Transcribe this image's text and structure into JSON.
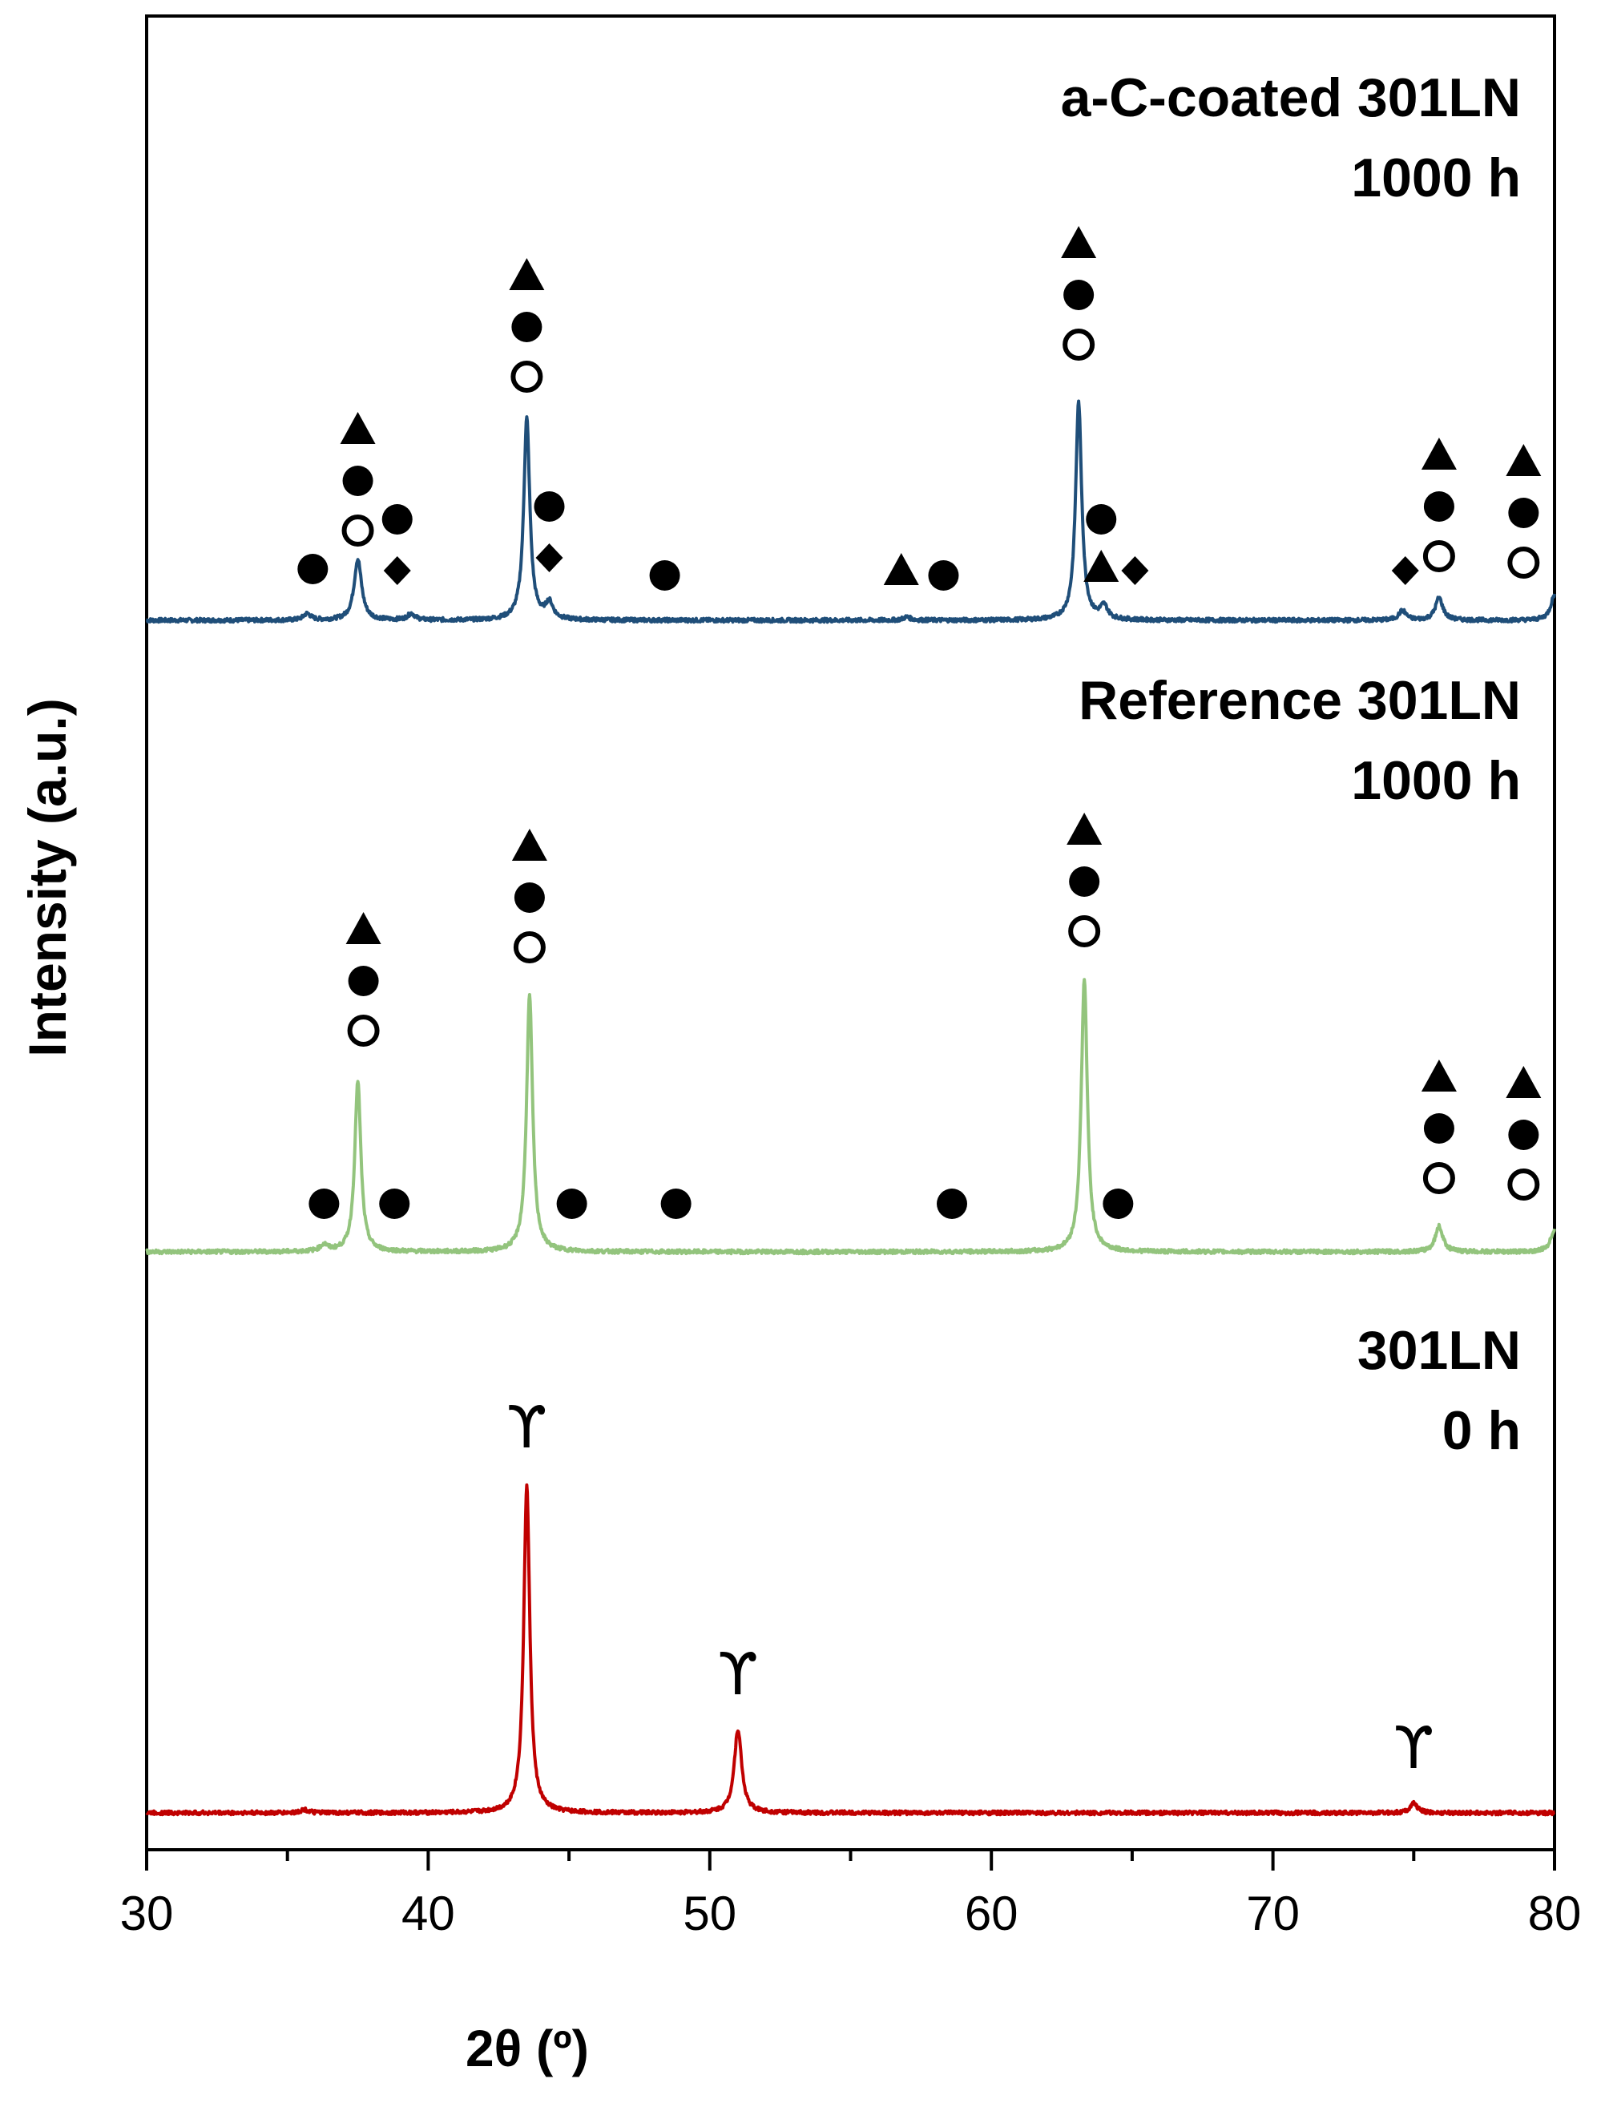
{
  "chart_data": {
    "type": "line",
    "title": "",
    "xlabel": "2θ (º)",
    "ylabel": "Intensity (a.u.)",
    "xlim": [
      30,
      80
    ],
    "xticks": [
      "30",
      "40",
      "50",
      "60",
      "70",
      "80"
    ],
    "xtick_values": [
      30,
      40,
      50,
      60,
      70,
      80
    ],
    "grid": false,
    "series": [
      {
        "name": "a-C-coated 301LN 1000 h",
        "label_lines": [
          "a-C-coated 301LN",
          "1000 h"
        ],
        "color": "#1f4e79",
        "baseline": 0,
        "peaks": [
          {
            "x": 35.7,
            "h": 0.2
          },
          {
            "x": 37.5,
            "h": 1.9
          },
          {
            "x": 39.4,
            "h": 0.2
          },
          {
            "x": 43.5,
            "h": 6.3
          },
          {
            "x": 44.3,
            "h": 0.5
          },
          {
            "x": 57.0,
            "h": 0.1
          },
          {
            "x": 63.1,
            "h": 6.8
          },
          {
            "x": 64.0,
            "h": 0.4
          },
          {
            "x": 74.6,
            "h": 0.3
          },
          {
            "x": 75.9,
            "h": 0.7
          },
          {
            "x": 80.0,
            "h": 0.8
          }
        ],
        "markers": [
          {
            "x": 35.9,
            "stack": [
              "filled-circle"
            ],
            "offset": 1.1
          },
          {
            "x": 37.5,
            "stack": [
              "open-circle",
              "filled-circle",
              "triangle"
            ],
            "offset": 2.3
          },
          {
            "x": 38.9,
            "stack": [
              "diamond",
              "filled-circle"
            ],
            "offset": 1.1
          },
          {
            "x": 44.3,
            "stack": [
              "diamond",
              "filled-circle"
            ],
            "offset": 1.5
          },
          {
            "x": 43.5,
            "stack": [
              "open-circle",
              "filled-circle",
              "triangle"
            ],
            "offset": 7.1
          },
          {
            "x": 48.4,
            "stack": [
              "filled-circle"
            ],
            "offset": 0.9
          },
          {
            "x": 56.8,
            "stack": [
              "triangle"
            ],
            "offset": 1.0
          },
          {
            "x": 58.3,
            "stack": [
              "filled-circle"
            ],
            "offset": 0.9
          },
          {
            "x": 63.1,
            "stack": [
              "open-circle",
              "filled-circle",
              "triangle"
            ],
            "offset": 8.1
          },
          {
            "x": 63.9,
            "stack": [
              "triangle",
              "filled-circle"
            ],
            "offset": 1.1
          },
          {
            "x": 65.1,
            "stack": [
              "diamond"
            ],
            "offset": 1.1
          },
          {
            "x": 74.7,
            "stack": [
              "diamond"
            ],
            "offset": 1.1
          },
          {
            "x": 75.9,
            "stack": [
              "open-circle",
              "filled-circle",
              "triangle"
            ],
            "offset": 1.5
          },
          {
            "x": 78.9,
            "stack": [
              "open-circle",
              "filled-circle",
              "triangle"
            ],
            "offset": 1.3
          }
        ]
      },
      {
        "name": "Reference 301LN 1000 h",
        "label_lines": [
          "Reference 301LN",
          "1000 h"
        ],
        "color": "#93c47d",
        "baseline": 0,
        "peaks": [
          {
            "x": 36.3,
            "h": 0.2
          },
          {
            "x": 37.5,
            "h": 5.3
          },
          {
            "x": 43.6,
            "h": 8.0
          },
          {
            "x": 63.3,
            "h": 8.5
          },
          {
            "x": 75.9,
            "h": 0.8
          },
          {
            "x": 80.0,
            "h": 0.7
          }
        ],
        "markers": [
          {
            "x": 36.3,
            "stack": [
              "filled-circle"
            ],
            "offset": 1.0
          },
          {
            "x": 37.7,
            "stack": [
              "open-circle",
              "filled-circle",
              "triangle"
            ],
            "offset": 6.4
          },
          {
            "x": 38.8,
            "stack": [
              "filled-circle"
            ],
            "offset": 1.0
          },
          {
            "x": 43.6,
            "stack": [
              "open-circle",
              "filled-circle",
              "triangle"
            ],
            "offset": 9.0
          },
          {
            "x": 45.1,
            "stack": [
              "filled-circle"
            ],
            "offset": 1.0
          },
          {
            "x": 48.8,
            "stack": [
              "filled-circle"
            ],
            "offset": 1.0
          },
          {
            "x": 58.6,
            "stack": [
              "filled-circle"
            ],
            "offset": 1.0
          },
          {
            "x": 63.3,
            "stack": [
              "open-circle",
              "filled-circle",
              "triangle"
            ],
            "offset": 9.5
          },
          {
            "x": 64.5,
            "stack": [
              "filled-circle"
            ],
            "offset": 1.0
          },
          {
            "x": 75.9,
            "stack": [
              "open-circle",
              "filled-circle",
              "triangle"
            ],
            "offset": 1.8
          },
          {
            "x": 78.9,
            "stack": [
              "open-circle",
              "filled-circle",
              "triangle"
            ],
            "offset": 1.6
          }
        ]
      },
      {
        "name": "301LN 0 h",
        "label_lines": [
          "301LN",
          "0 h"
        ],
        "color": "#c00000",
        "baseline": 0,
        "peaks": [
          {
            "x": 35.6,
            "h": 0.1
          },
          {
            "x": 43.5,
            "h": 10.2
          },
          {
            "x": 51.0,
            "h": 2.6
          },
          {
            "x": 75.0,
            "h": 0.3
          }
        ],
        "markers": [
          {
            "x": 43.5,
            "stack": [
              "gamma"
            ],
            "offset": 11.3
          },
          {
            "x": 51.0,
            "stack": [
              "gamma"
            ],
            "offset": 3.6
          },
          {
            "x": 75.0,
            "stack": [
              "gamma"
            ],
            "offset": 1.3
          }
        ]
      }
    ],
    "phase_symbols": {
      "gamma": "ϒ",
      "open-circle": "open circle",
      "filled-circle": "filled circle",
      "triangle": "triangle",
      "diamond": "diamond"
    }
  }
}
